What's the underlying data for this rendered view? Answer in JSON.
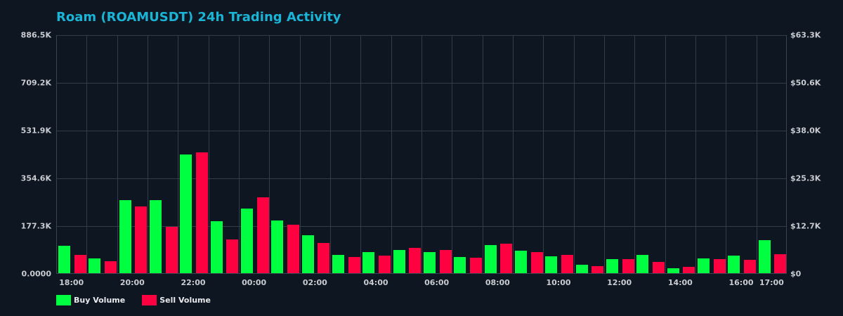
{
  "chart_data": {
    "type": "bar",
    "title": "Roam (ROAMUSDT) 24h Trading Activity",
    "xlabel": "",
    "ylabel": "",
    "ylim": [
      0,
      886500
    ],
    "y2lim": [
      0,
      63300
    ],
    "grid": true,
    "legend_position": "bottom-left",
    "categories": [
      "18:00",
      "19:00",
      "20:00",
      "21:00",
      "22:00",
      "23:00",
      "00:00",
      "01:00",
      "02:00",
      "03:00",
      "04:00",
      "05:00",
      "06:00",
      "07:00",
      "08:00",
      "09:00",
      "10:00",
      "11:00",
      "12:00",
      "13:00",
      "14:00",
      "15:00",
      "16:00",
      "17:00"
    ],
    "series": [
      {
        "name": "Buy Volume",
        "color": "#00ff41",
        "values": [
          101700,
          54800,
          271000,
          271000,
          440700,
          193000,
          240000,
          195600,
          140800,
          67800,
          78000,
          86000,
          78000,
          60000,
          104000,
          83000,
          62600,
          31300,
          52000,
          68000,
          18000,
          55000,
          65000,
          122500
        ]
      },
      {
        "name": "Sell Volume",
        "color": "#ff0040",
        "values": [
          67800,
          44300,
          247700,
          172000,
          448500,
          125000,
          281600,
          180000,
          112000,
          60000,
          65000,
          94000,
          86000,
          57000,
          109500,
          78000,
          67800,
          26000,
          52000,
          42000,
          23500,
          52000,
          49500,
          70400
        ]
      }
    ],
    "left_ticks": [
      "0.0000",
      "177.3K",
      "354.6K",
      "531.9K",
      "709.2K",
      "886.5K"
    ],
    "right_ticks": [
      "$0",
      "$12.7K",
      "$25.3K",
      "$38.0K",
      "$50.6K",
      "$63.3K"
    ],
    "x_tick_labels": [
      {
        "label": "18:00",
        "slot": 0
      },
      {
        "label": "20:00",
        "slot": 2
      },
      {
        "label": "22:00",
        "slot": 4
      },
      {
        "label": "00:00",
        "slot": 6
      },
      {
        "label": "02:00",
        "slot": 8
      },
      {
        "label": "04:00",
        "slot": 10
      },
      {
        "label": "06:00",
        "slot": 12
      },
      {
        "label": "08:00",
        "slot": 14
      },
      {
        "label": "10:00",
        "slot": 16
      },
      {
        "label": "12:00",
        "slot": 18
      },
      {
        "label": "14:00",
        "slot": 20
      },
      {
        "label": "16:00",
        "slot": 22
      },
      {
        "label": "17:00",
        "slot": 23
      }
    ]
  },
  "header": {
    "title": "Roam (ROAMUSDT) 24h Trading Activity"
  },
  "legend": {
    "buy_label": "Buy Volume",
    "sell_label": "Sell Volume",
    "buy_color": "#00ff41",
    "sell_color": "#ff0040"
  }
}
